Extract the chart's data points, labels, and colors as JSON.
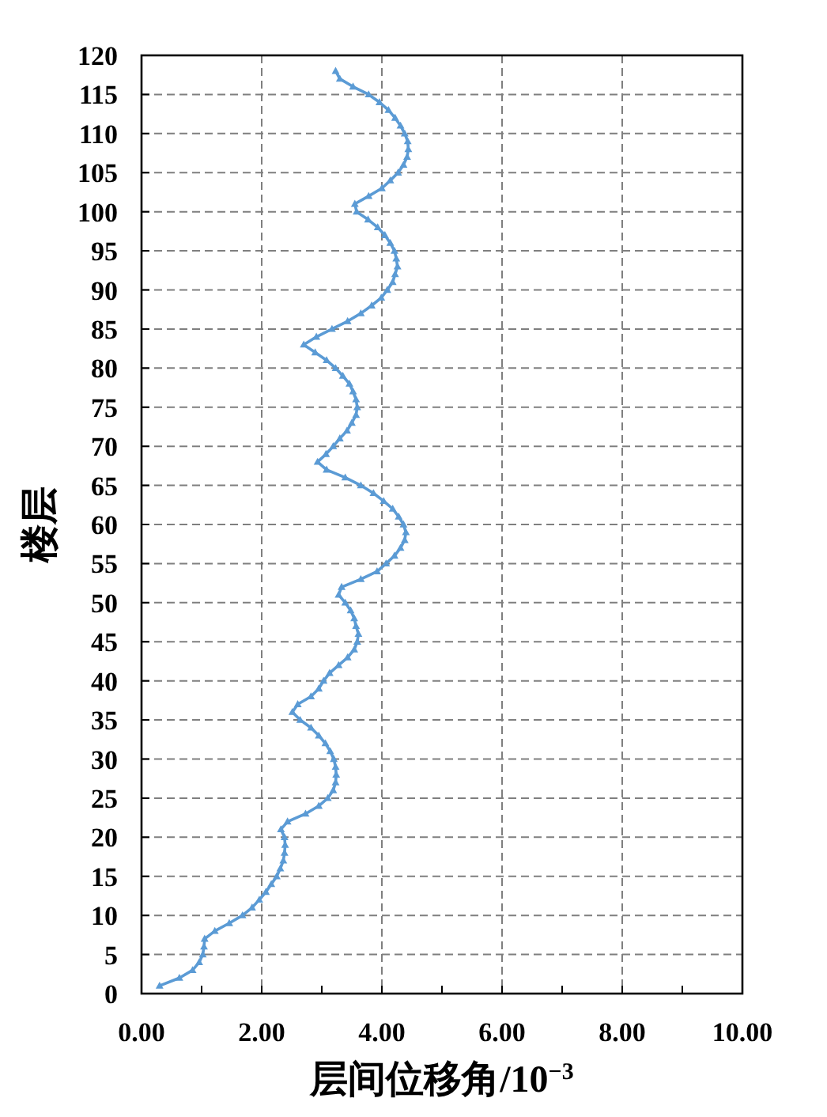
{
  "chart_data": {
    "type": "line",
    "xlabel": "层间位移角/10$^{−3}$",
    "ylabel": "楼层",
    "xlim": [
      0,
      10
    ],
    "ylim": [
      0,
      120
    ],
    "xticks": [
      {
        "value": 0,
        "label": "0.00"
      },
      {
        "value": 1,
        "label": null
      },
      {
        "value": 2,
        "label": "2.00"
      },
      {
        "value": 3,
        "label": null
      },
      {
        "value": 4,
        "label": "4.00"
      },
      {
        "value": 5,
        "label": null
      },
      {
        "value": 6,
        "label": "6.00"
      },
      {
        "value": 7,
        "label": null
      },
      {
        "value": 8,
        "label": "8.00"
      },
      {
        "value": 9,
        "label": null
      },
      {
        "value": 10,
        "label": "10.00"
      }
    ],
    "yticks": [
      0,
      5,
      10,
      15,
      20,
      25,
      30,
      35,
      40,
      45,
      50,
      55,
      60,
      65,
      70,
      75,
      80,
      85,
      90,
      95,
      100,
      105,
      110,
      115,
      120
    ],
    "grid": true,
    "marker": "triangle",
    "line_style": "solid",
    "series": [
      {
        "color": "#5b9bd5",
        "x": [
          0.3,
          0.63,
          0.85,
          0.96,
          1.02,
          1.04,
          1.05,
          1.22,
          1.46,
          1.68,
          1.84,
          1.96,
          2.07,
          2.16,
          2.25,
          2.31,
          2.36,
          2.38,
          2.39,
          2.38,
          2.32,
          2.43,
          2.73,
          2.95,
          3.1,
          3.19,
          3.23,
          3.24,
          3.23,
          3.2,
          3.14,
          3.06,
          2.95,
          2.82,
          2.64,
          2.51,
          2.6,
          2.82,
          2.95,
          3.03,
          3.13,
          3.28,
          3.43,
          3.54,
          3.59,
          3.61,
          3.57,
          3.54,
          3.48,
          3.39,
          3.28,
          3.33,
          3.65,
          3.92,
          4.07,
          4.21,
          4.31,
          4.38,
          4.4,
          4.36,
          4.28,
          4.18,
          4.03,
          3.86,
          3.65,
          3.39,
          3.08,
          2.93,
          3.07,
          3.19,
          3.3,
          3.42,
          3.5,
          3.57,
          3.59,
          3.57,
          3.52,
          3.46,
          3.35,
          3.23,
          3.08,
          2.89,
          2.7,
          2.91,
          3.17,
          3.43,
          3.65,
          3.83,
          3.99,
          4.09,
          4.18,
          4.22,
          4.26,
          4.24,
          4.21,
          4.14,
          4.05,
          3.93,
          3.77,
          3.58,
          3.55,
          3.78,
          4.0,
          4.14,
          4.27,
          4.36,
          4.42,
          4.44,
          4.43,
          4.38,
          4.31,
          4.22,
          4.11,
          3.96,
          3.78,
          3.52,
          3.3,
          3.23
        ],
        "values": [
          1,
          2,
          3,
          4,
          5,
          6,
          7,
          8,
          9,
          10,
          11,
          12,
          13,
          14,
          15,
          16,
          17,
          18,
          19,
          20,
          21,
          22,
          23,
          24,
          25,
          26,
          27,
          28,
          29,
          30,
          31,
          32,
          33,
          34,
          35,
          36,
          37,
          38,
          39,
          40,
          41,
          42,
          43,
          44,
          45,
          46,
          47,
          48,
          49,
          50,
          51,
          52,
          53,
          54,
          55,
          56,
          57,
          58,
          59,
          60,
          61,
          62,
          63,
          64,
          65,
          66,
          67,
          68,
          69,
          70,
          71,
          72,
          73,
          74,
          75,
          76,
          77,
          78,
          79,
          80,
          81,
          82,
          83,
          84,
          85,
          86,
          87,
          88,
          89,
          90,
          91,
          92,
          93,
          94,
          95,
          96,
          97,
          98,
          99,
          100,
          101,
          102,
          103,
          104,
          105,
          106,
          107,
          108,
          109,
          110,
          111,
          112,
          113,
          114,
          115,
          116,
          117,
          118
        ]
      }
    ]
  }
}
